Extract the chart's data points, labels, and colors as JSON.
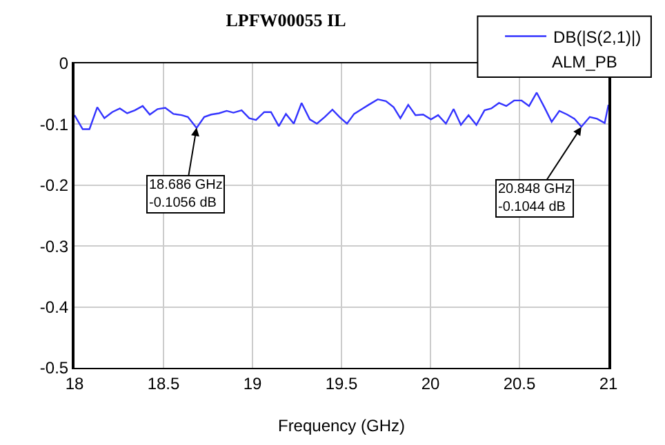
{
  "chart_data": {
    "type": "line",
    "title": "LPFW00055 IL",
    "xlabel": "Frequency (GHz)",
    "x": [
      18.0,
      18.046,
      18.084,
      18.128,
      18.168,
      18.212,
      18.255,
      18.296,
      18.339,
      18.383,
      18.423,
      18.467,
      18.51,
      18.556,
      18.602,
      18.637,
      18.686,
      18.729,
      18.768,
      18.811,
      18.855,
      18.893,
      18.939,
      18.982,
      19.02,
      19.066,
      19.104,
      19.148,
      19.188,
      19.232,
      19.276,
      19.322,
      19.362,
      19.406,
      19.449,
      19.492,
      19.531,
      19.571,
      19.615,
      19.653,
      19.704,
      19.75,
      19.793,
      19.831,
      19.875,
      19.916,
      19.959,
      20.003,
      20.043,
      20.087,
      20.13,
      20.171,
      20.214,
      20.258,
      20.304,
      20.342,
      20.385,
      20.426,
      20.47,
      20.512,
      20.554,
      20.597,
      20.64,
      20.681,
      20.724,
      20.768,
      20.809,
      20.848,
      20.895,
      20.936,
      20.979,
      21.0
    ],
    "series": [
      {
        "name": "DB(|S(2,1)|)",
        "color": "#3333ff",
        "values": [
          -0.085,
          -0.108,
          -0.108,
          -0.072,
          -0.09,
          -0.08,
          -0.074,
          -0.082,
          -0.077,
          -0.07,
          -0.084,
          -0.075,
          -0.073,
          -0.083,
          -0.085,
          -0.088,
          -0.106,
          -0.088,
          -0.084,
          -0.082,
          -0.078,
          -0.081,
          -0.077,
          -0.09,
          -0.093,
          -0.08,
          -0.08,
          -0.103,
          -0.083,
          -0.099,
          -0.065,
          -0.092,
          -0.099,
          -0.088,
          -0.076,
          -0.089,
          -0.099,
          -0.083,
          -0.075,
          -0.068,
          -0.059,
          -0.062,
          -0.072,
          -0.09,
          -0.068,
          -0.085,
          -0.084,
          -0.092,
          -0.085,
          -0.099,
          -0.075,
          -0.101,
          -0.085,
          -0.101,
          -0.077,
          -0.074,
          -0.065,
          -0.07,
          -0.061,
          -0.061,
          -0.07,
          -0.048,
          -0.072,
          -0.096,
          -0.078,
          -0.084,
          -0.091,
          -0.104,
          -0.088,
          -0.091,
          -0.098,
          -0.068
        ]
      }
    ],
    "annotations": [
      {
        "text": "18.686 GHz\n-0.1056 dB",
        "x": 18.686,
        "y": -0.1056
      },
      {
        "text": "20.848 GHz\n-0.1044 dB",
        "x": 20.848,
        "y": -0.1044
      },
      "ALM_PB"
    ],
    "xlim": [
      18,
      21
    ],
    "xticks": [
      18,
      18.5,
      19,
      19.5,
      20,
      20.5,
      21
    ],
    "ylim": [
      -0.5,
      0
    ],
    "yticks": [
      0,
      -0.1,
      -0.2,
      -0.3,
      -0.4,
      -0.5
    ],
    "grid": true,
    "legend": "top right",
    "marker": "none",
    "line_style": "solid"
  }
}
